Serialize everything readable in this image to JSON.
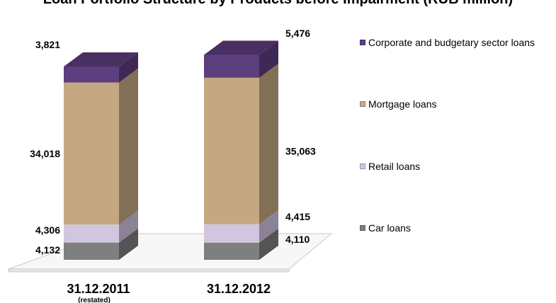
{
  "page": {
    "title": "Loan Portfolio Structure by Products before Impairment (RUB million)"
  },
  "colors": {
    "car": "#7f7f7f",
    "retail": "#d2c5df",
    "mortgage": "#c4a882",
    "corporate": "#5d3e7f"
  },
  "chart_data": {
    "type": "bar",
    "stacked": true,
    "categories": [
      "31.12.2011",
      "31.12.2012"
    ],
    "category_notes": [
      "(restated)",
      ""
    ],
    "series": [
      {
        "name": "Car loans",
        "color_key": "car",
        "values": [
          4132,
          4110
        ],
        "labels": [
          "4,132",
          "4,110"
        ]
      },
      {
        "name": "Retail loans",
        "color_key": "retail",
        "values": [
          4306,
          4415
        ],
        "labels": [
          "4,306",
          "4,415"
        ]
      },
      {
        "name": "Mortgage loans",
        "color_key": "mortgage",
        "values": [
          34018,
          35063
        ],
        "labels": [
          "34,018",
          "35,063"
        ]
      },
      {
        "name": "Corporate and budgetary sector loans",
        "color_key": "corporate",
        "values": [
          3821,
          5476
        ],
        "labels": [
          "3,821",
          "5,476"
        ]
      }
    ],
    "legend": [
      "Corporate and budgetary sector loans",
      "Mortgage loans",
      "Retail loans",
      "Car loans"
    ],
    "legend_position": "right",
    "grid": false,
    "axes_visible": false,
    "three_d": true
  }
}
